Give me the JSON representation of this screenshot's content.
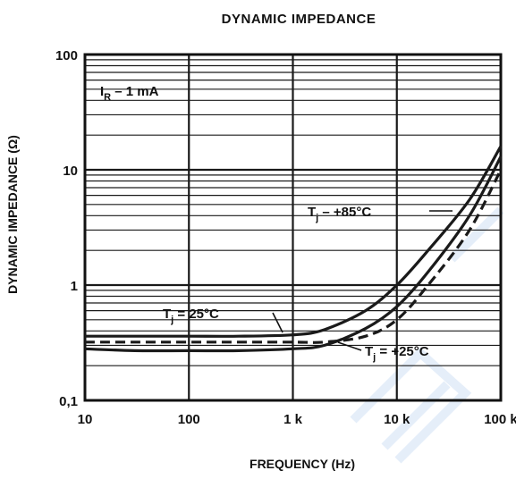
{
  "chart_data": {
    "type": "line",
    "title": "DYNAMIC IMPEDANCE",
    "xlabel": "FREQUENCY (Hz)",
    "ylabel": "DYNAMIC IMPEDANCE (Ω)",
    "x_scale": "log",
    "y_scale": "log",
    "xlim": [
      10,
      100000
    ],
    "ylim": [
      0.1,
      100
    ],
    "x_ticks": [
      10,
      100,
      1000,
      10000,
      100000
    ],
    "x_tick_labels": [
      "10",
      "100",
      "1 k",
      "10 k",
      "100 k"
    ],
    "y_ticks": [
      0.1,
      1,
      10,
      100
    ],
    "y_tick_labels": [
      "0,1",
      "1",
      "10",
      "100"
    ],
    "grid": true,
    "condition_label": "I_R = 1 mA",
    "series": [
      {
        "name": "Tj = +85°C",
        "style": "solid",
        "x": [
          10,
          30,
          100,
          300,
          1000,
          2000,
          5000,
          10000,
          20000,
          50000,
          100000
        ],
        "y": [
          0.36,
          0.36,
          0.36,
          0.36,
          0.37,
          0.41,
          0.6,
          1.0,
          2.0,
          5.5,
          16
        ]
      },
      {
        "name": "Tj = 25°C",
        "style": "dashed",
        "x": [
          10,
          30,
          100,
          300,
          1000,
          2000,
          5000,
          10000,
          20000,
          50000,
          100000
        ],
        "y": [
          0.32,
          0.32,
          0.32,
          0.32,
          0.32,
          0.32,
          0.36,
          0.5,
          1.0,
          3.0,
          10
        ]
      },
      {
        "name": "Tj = +25°C",
        "style": "solid",
        "x": [
          10,
          30,
          100,
          300,
          1000,
          2000,
          5000,
          10000,
          20000,
          50000,
          100000
        ],
        "y": [
          0.28,
          0.27,
          0.27,
          0.27,
          0.28,
          0.3,
          0.42,
          0.65,
          1.3,
          4.0,
          13
        ]
      }
    ]
  }
}
